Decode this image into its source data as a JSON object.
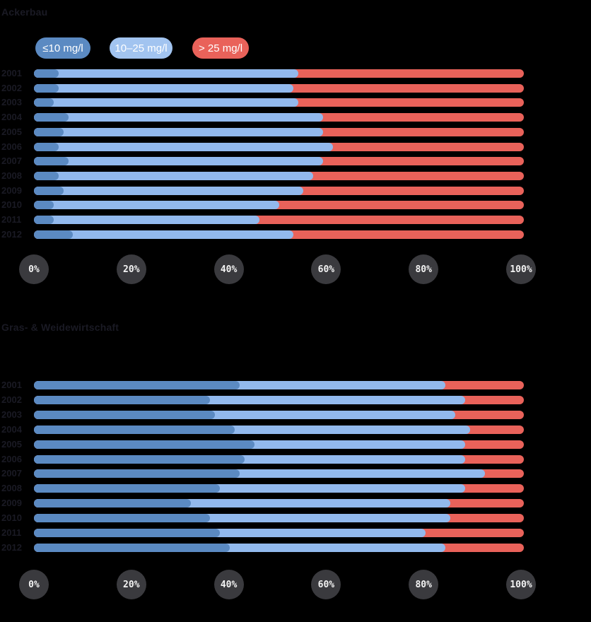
{
  "page": {
    "background": "#000000",
    "text_color": "#1a1a24"
  },
  "legend": {
    "items": [
      {
        "label": "≤10 mg/l",
        "color": "#5b8ac2",
        "text_color": "#ffffff"
      },
      {
        "label": "10–25 mg/l",
        "color": "#a2c4f0",
        "text_color": "#ffffff"
      },
      {
        "label": "> 25 mg/l",
        "color": "#e9625a",
        "text_color": "#ffffff"
      }
    ]
  },
  "axis": {
    "ticks": [
      "0%",
      "20%",
      "40%",
      "60%",
      "80%",
      "100%"
    ],
    "badge_color": "#3a3a3e",
    "badge_text_color": "#f3f3f3"
  },
  "chart_data": [
    {
      "type": "bar",
      "orientation": "horizontal",
      "stacked": true,
      "unit": "%",
      "title": "Ackerbau",
      "xlim": [
        0,
        100
      ],
      "legend_position": "top",
      "grid": false,
      "categories": [
        "2001",
        "2002",
        "2003",
        "2004",
        "2005",
        "2006",
        "2007",
        "2008",
        "2009",
        "2010",
        "2011",
        "2012"
      ],
      "series": [
        {
          "name": "≤10 mg/l",
          "color": "#5b8ac2",
          "values": [
            5,
            5,
            4,
            7,
            6,
            5,
            7,
            5,
            6,
            4,
            4,
            8
          ]
        },
        {
          "name": "10–25 mg/l",
          "color": "#92b9ed",
          "values": [
            49,
            48,
            50,
            52,
            53,
            56,
            52,
            52,
            49,
            46,
            42,
            45
          ]
        },
        {
          "name": "> 25 mg/l",
          "color": "#e9625a",
          "values": [
            46,
            47,
            46,
            41,
            41,
            39,
            41,
            43,
            45,
            50,
            54,
            47
          ]
        }
      ]
    },
    {
      "type": "bar",
      "orientation": "horizontal",
      "stacked": true,
      "unit": "%",
      "title": "Gras- & Weidewirtschaft",
      "xlim": [
        0,
        100
      ],
      "legend_position": "none",
      "grid": false,
      "categories": [
        "2001",
        "2002",
        "2003",
        "2004",
        "2005",
        "2006",
        "2007",
        "2008",
        "2009",
        "2010",
        "2011",
        "2012"
      ],
      "series": [
        {
          "name": "≤10 mg/l",
          "color": "#5b8ac2",
          "values": [
            42,
            36,
            37,
            41,
            45,
            43,
            42,
            38,
            32,
            36,
            38,
            40
          ]
        },
        {
          "name": "10–25 mg/l",
          "color": "#92b9ed",
          "values": [
            42,
            52,
            49,
            48,
            43,
            45,
            50,
            50,
            53,
            49,
            42,
            44
          ]
        },
        {
          "name": "> 25 mg/l",
          "color": "#e9625a",
          "values": [
            16,
            12,
            14,
            11,
            12,
            12,
            8,
            12,
            15,
            15,
            20,
            16
          ]
        }
      ]
    }
  ]
}
